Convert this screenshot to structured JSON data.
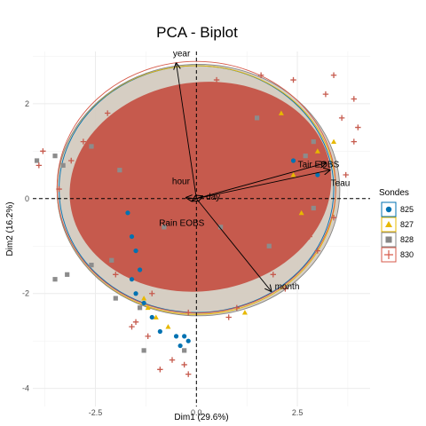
{
  "chart_data": {
    "type": "scatter",
    "title": "PCA - Biplot",
    "xlabel": "Dim1 (29.6%)",
    "ylabel": "Dim2 (16.2%)",
    "xlim": [
      -4.05,
      4.3
    ],
    "ylim": [
      -4.38,
      3.1
    ],
    "xticks": [
      -2.5,
      0.0,
      2.5
    ],
    "xtick_labels": [
      "-2.5",
      "0.0",
      "2.5"
    ],
    "yticks": [
      -4,
      -2,
      0,
      2
    ],
    "ytick_labels": [
      "-4",
      "-2",
      "0",
      "2"
    ],
    "grid": true,
    "legend": {
      "title": "Sondes",
      "position": "right",
      "entries": [
        {
          "label": "825",
          "color": "#0072b2",
          "marker": "circle"
        },
        {
          "label": "827",
          "color": "#e7b800",
          "marker": "triangle"
        },
        {
          "label": "828",
          "color": "#868686",
          "marker": "square"
        },
        {
          "label": "830",
          "color": "#d75a4a",
          "marker": "plus"
        }
      ]
    },
    "ellipses": [
      {
        "series": "825",
        "color": "#0072b2",
        "cx": 0.0,
        "cy": 0.2,
        "rx": 3.4,
        "ry": 2.6
      },
      {
        "series": "827",
        "color": "#e7b800",
        "cx": 0.0,
        "cy": 0.18,
        "rx": 3.45,
        "ry": 2.62
      },
      {
        "series": "828",
        "color": "#868686",
        "cx": 0.05,
        "cy": 0.18,
        "rx": 3.5,
        "ry": 2.65
      },
      {
        "series": "830",
        "color": "#d75a4a",
        "cx": 0.0,
        "cy": 0.24,
        "rx": 3.45,
        "ry": 2.65
      }
    ],
    "variables": [
      {
        "name": "year",
        "x": -0.5,
        "y": 2.85
      },
      {
        "name": "Tair EOBS",
        "x": 3.2,
        "y": 0.75
      },
      {
        "name": "Teau",
        "x": 3.3,
        "y": 0.6
      },
      {
        "name": "hour",
        "x": -0.25,
        "y": 0.02
      },
      {
        "name": "day",
        "x": 0.15,
        "y": 0.05
      },
      {
        "name": "Rain EOBS",
        "x": -0.1,
        "y": -0.05
      },
      {
        "name": "month",
        "x": 1.85,
        "y": -1.95
      }
    ],
    "series": [
      {
        "name": "830",
        "color": "#c65a4d",
        "points": [
          [
            -2.2,
            1.8
          ],
          [
            -1.5,
            2.0
          ],
          [
            -0.5,
            2.3
          ],
          [
            0.5,
            2.5
          ],
          [
            1.6,
            2.6
          ],
          [
            2.4,
            2.5
          ],
          [
            3.2,
            2.2
          ],
          [
            3.6,
            1.7
          ],
          [
            -3.1,
            0.8
          ],
          [
            -2.8,
            1.2
          ],
          [
            -3.4,
            0.2
          ],
          [
            -2.9,
            -0.4
          ],
          [
            -2.5,
            -1.0
          ],
          [
            -2.0,
            -1.6
          ],
          [
            -1.1,
            -2.0
          ],
          [
            -0.2,
            -2.4
          ],
          [
            1.0,
            -2.3
          ],
          [
            2.2,
            -1.9
          ],
          [
            3.0,
            -1.1
          ],
          [
            3.4,
            -0.4
          ],
          [
            3.7,
            0.5
          ],
          [
            3.9,
            1.2
          ],
          [
            -1.5,
            -2.6
          ],
          [
            -0.6,
            -3.4
          ],
          [
            -0.3,
            -3.5
          ],
          [
            -0.9,
            -3.6
          ],
          [
            -0.2,
            -3.7
          ],
          [
            -1.6,
            -2.7
          ],
          [
            -1.2,
            -2.9
          ],
          [
            0.8,
            -2.5
          ],
          [
            1.9,
            -1.6
          ],
          [
            2.8,
            -0.8
          ],
          [
            -3.8,
            1.0
          ],
          [
            -3.9,
            0.7
          ],
          [
            4.0,
            1.5
          ],
          [
            3.4,
            2.6
          ],
          [
            3.9,
            2.1
          ]
        ]
      },
      {
        "name": "828",
        "color": "#8c8c8c",
        "points": [
          [
            -3.5,
            0.9
          ],
          [
            -3.95,
            0.8
          ],
          [
            -3.3,
            0.7
          ],
          [
            -2.6,
            1.1
          ],
          [
            -3.5,
            -1.7
          ],
          [
            -3.2,
            -1.6
          ],
          [
            -2.6,
            -1.4
          ],
          [
            -2.1,
            -1.3
          ],
          [
            -1.3,
            -3.2
          ],
          [
            -0.3,
            -3.2
          ],
          [
            -1.4,
            -2.3
          ],
          [
            -2.0,
            -2.1
          ],
          [
            2.7,
            0.9
          ],
          [
            2.9,
            1.2
          ],
          [
            1.8,
            -1.0
          ],
          [
            2.9,
            -0.2
          ],
          [
            1.5,
            1.7
          ],
          [
            -0.8,
            -0.6
          ],
          [
            0.6,
            -0.6
          ],
          [
            -1.9,
            0.6
          ]
        ]
      },
      {
        "name": "827",
        "color": "#e7b800",
        "points": [
          [
            3.0,
            1.0
          ],
          [
            3.4,
            1.2
          ],
          [
            2.6,
            -0.3
          ],
          [
            2.1,
            1.8
          ],
          [
            -1.2,
            -2.3
          ],
          [
            -1.0,
            -2.5
          ],
          [
            -0.7,
            -2.7
          ],
          [
            -1.3,
            -2.1
          ],
          [
            1.2,
            -2.4
          ],
          [
            2.4,
            0.5
          ]
        ]
      },
      {
        "name": "825",
        "color": "#0072b2",
        "points": [
          [
            -1.7,
            -0.3
          ],
          [
            -1.6,
            -0.8
          ],
          [
            -1.5,
            -1.1
          ],
          [
            -1.4,
            -1.5
          ],
          [
            -1.3,
            -2.2
          ],
          [
            -1.1,
            -2.5
          ],
          [
            -0.9,
            -2.8
          ],
          [
            -0.5,
            -2.9
          ],
          [
            -0.4,
            -3.1
          ],
          [
            -0.3,
            -2.9
          ],
          [
            -0.2,
            -3.0
          ],
          [
            -1.5,
            -2.0
          ],
          [
            -1.6,
            -1.7
          ],
          [
            2.4,
            0.8
          ],
          [
            3.0,
            0.5
          ]
        ]
      }
    ]
  }
}
